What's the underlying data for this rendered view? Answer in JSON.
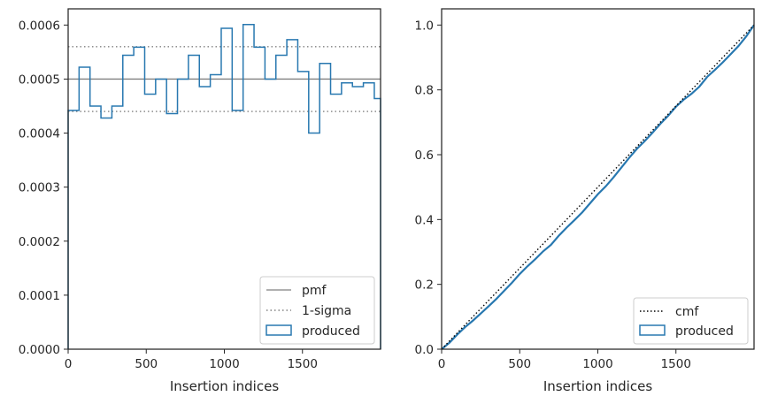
{
  "chart_data": [
    {
      "type": "histogram",
      "xlabel": "Insertion indices",
      "ylabel": "",
      "xlim": [
        0,
        2000
      ],
      "ylim": [
        0,
        0.00063
      ],
      "x_ticks": [
        0,
        500,
        1000,
        1500
      ],
      "x_tick_labels": [
        "0",
        "500",
        "1000",
        "1500"
      ],
      "y_ticks": [
        0,
        0.0001,
        0.0002,
        0.0003,
        0.0004,
        0.0005,
        0.0006
      ],
      "y_tick_labels": [
        "0.0000",
        "0.0001",
        "0.0002",
        "0.0003",
        "0.0004",
        "0.0005",
        "0.0006"
      ],
      "grid": false,
      "legend_position": "bottom-right",
      "pmf": {
        "name": "pmf",
        "value": 0.0005,
        "color": "#808080"
      },
      "sigma": {
        "name": "1-sigma",
        "values": [
          0.00044,
          0.00056
        ],
        "color": "#808080"
      },
      "histogram": {
        "name": "produced",
        "color": "#2878b0",
        "bin_edges": [
          0,
          70,
          140,
          210,
          280,
          350,
          420,
          490,
          560,
          630,
          700,
          770,
          840,
          910,
          980,
          1050,
          1120,
          1190,
          1260,
          1330,
          1400,
          1470,
          1540,
          1610,
          1680,
          1750,
          1820,
          1890,
          1960,
          2000
        ],
        "values": [
          0.000442,
          0.000522,
          0.00045,
          0.000428,
          0.00045,
          0.000544,
          0.000559,
          0.000472,
          0.0005,
          0.000436,
          0.0005,
          0.000544,
          0.000486,
          0.000508,
          0.000594,
          0.000442,
          0.000601,
          0.000559,
          0.0005,
          0.000544,
          0.000573,
          0.000514,
          0.0004,
          0.000529,
          0.000472,
          0.000493,
          0.000486,
          0.000493,
          0.000464
        ]
      }
    },
    {
      "type": "line",
      "xlabel": "Insertion indices",
      "ylabel": "",
      "xlim": [
        0,
        2000
      ],
      "ylim": [
        0,
        1.05
      ],
      "x_ticks": [
        0,
        500,
        1000,
        1500
      ],
      "x_tick_labels": [
        "0",
        "500",
        "1000",
        "1500"
      ],
      "y_ticks": [
        0,
        0.2,
        0.4,
        0.6,
        0.8,
        1.0
      ],
      "y_tick_labels": [
        "0.0",
        "0.2",
        "0.4",
        "0.6",
        "0.8",
        "1.0"
      ],
      "grid": false,
      "legend_position": "bottom-right",
      "series": [
        {
          "name": "cmf",
          "style": "dotted",
          "color": "#000000",
          "x": [
            0,
            2000
          ],
          "y": [
            0,
            1.0
          ]
        },
        {
          "name": "produced",
          "style": "solid",
          "color": "#2878b0",
          "x": [
            0,
            50,
            100,
            150,
            200,
            250,
            300,
            350,
            400,
            450,
            500,
            550,
            600,
            650,
            700,
            750,
            800,
            850,
            900,
            950,
            1000,
            1050,
            1100,
            1150,
            1200,
            1250,
            1300,
            1350,
            1400,
            1450,
            1500,
            1550,
            1600,
            1650,
            1700,
            1750,
            1800,
            1850,
            1900,
            1950,
            2000
          ],
          "y": [
            0,
            0.02,
            0.045,
            0.068,
            0.088,
            0.11,
            0.132,
            0.155,
            0.18,
            0.205,
            0.232,
            0.256,
            0.278,
            0.302,
            0.322,
            0.35,
            0.375,
            0.398,
            0.422,
            0.45,
            0.478,
            0.502,
            0.53,
            0.56,
            0.59,
            0.618,
            0.642,
            0.668,
            0.695,
            0.72,
            0.748,
            0.77,
            0.788,
            0.81,
            0.84,
            0.862,
            0.885,
            0.91,
            0.935,
            0.965,
            1.0
          ]
        }
      ]
    }
  ]
}
